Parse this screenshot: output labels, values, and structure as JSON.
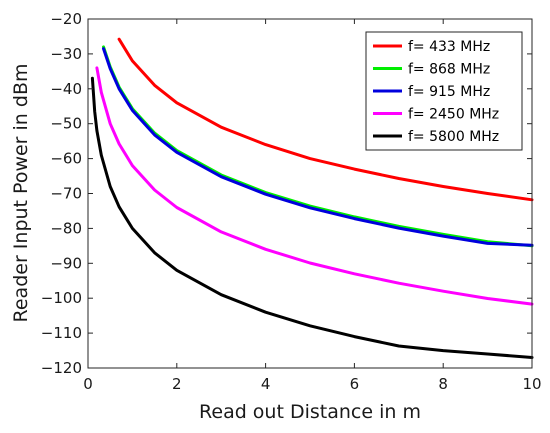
{
  "chart_data": {
    "type": "line",
    "title": "",
    "xlabel": "Read out Distance in m",
    "ylabel": "Reader Input Power in dBm",
    "xlim": [
      0,
      10
    ],
    "ylim": [
      -120,
      -20
    ],
    "xticks": [
      0,
      2,
      4,
      6,
      8,
      10
    ],
    "yticks": [
      -20,
      -30,
      -40,
      -50,
      -60,
      -70,
      -80,
      -90,
      -100,
      -110,
      -120
    ],
    "grid": false,
    "legend_position": "top-right",
    "series": [
      {
        "name": "f= 433 MHz",
        "color": "#ff0000",
        "x": [
          0.7,
          1,
          1.5,
          2,
          3,
          4,
          5,
          6,
          7,
          8,
          9,
          10
        ],
        "y": [
          -25.8,
          -32.0,
          -39.0,
          -44.0,
          -51.0,
          -56.0,
          -60.0,
          -63.0,
          -65.7,
          -68.0,
          -70.0,
          -71.8
        ]
      },
      {
        "name": "f= 868 MHz",
        "color": "#00ee00",
        "x": [
          0.35,
          0.5,
          0.7,
          1,
          1.5,
          2,
          3,
          4,
          5,
          6,
          7,
          8,
          9,
          10
        ],
        "y": [
          -28.0,
          -33.7,
          -39.5,
          -45.7,
          -52.7,
          -57.7,
          -64.7,
          -69.7,
          -73.6,
          -76.7,
          -79.4,
          -81.7,
          -83.8,
          -85.0
        ]
      },
      {
        "name": "f= 915 MHz",
        "color": "#0000dd",
        "x": [
          0.35,
          0.5,
          0.7,
          1,
          1.5,
          2,
          3,
          4,
          5,
          6,
          7,
          8,
          9,
          10
        ],
        "y": [
          -28.5,
          -34.2,
          -40.0,
          -46.2,
          -53.2,
          -58.2,
          -65.2,
          -70.2,
          -74.1,
          -77.2,
          -79.9,
          -82.2,
          -84.3,
          -84.8
        ]
      },
      {
        "name": "f= 2450 MHz",
        "color": "#ff00ff",
        "x": [
          0.2,
          0.3,
          0.5,
          0.7,
          1,
          1.5,
          2,
          3,
          4,
          5,
          6,
          7,
          8,
          9,
          10
        ],
        "y": [
          -34.0,
          -41.0,
          -50.0,
          -55.8,
          -62.0,
          -69.0,
          -74.0,
          -81.0,
          -86.0,
          -89.9,
          -93.0,
          -95.7,
          -98.0,
          -100.1,
          -101.7
        ]
      },
      {
        "name": "f= 5800 MHz",
        "color": "#000000",
        "x": [
          0.1,
          0.15,
          0.2,
          0.3,
          0.5,
          0.7,
          1,
          1.5,
          2,
          3,
          4,
          5,
          6,
          7,
          8,
          9,
          10
        ],
        "y": [
          -37.0,
          -46.5,
          -52.0,
          -59.0,
          -68.0,
          -73.8,
          -80.0,
          -87.0,
          -92.0,
          -99.0,
          -104.0,
          -107.9,
          -111.0,
          -113.7,
          -115.0,
          -116.0,
          -117.0
        ]
      }
    ]
  }
}
